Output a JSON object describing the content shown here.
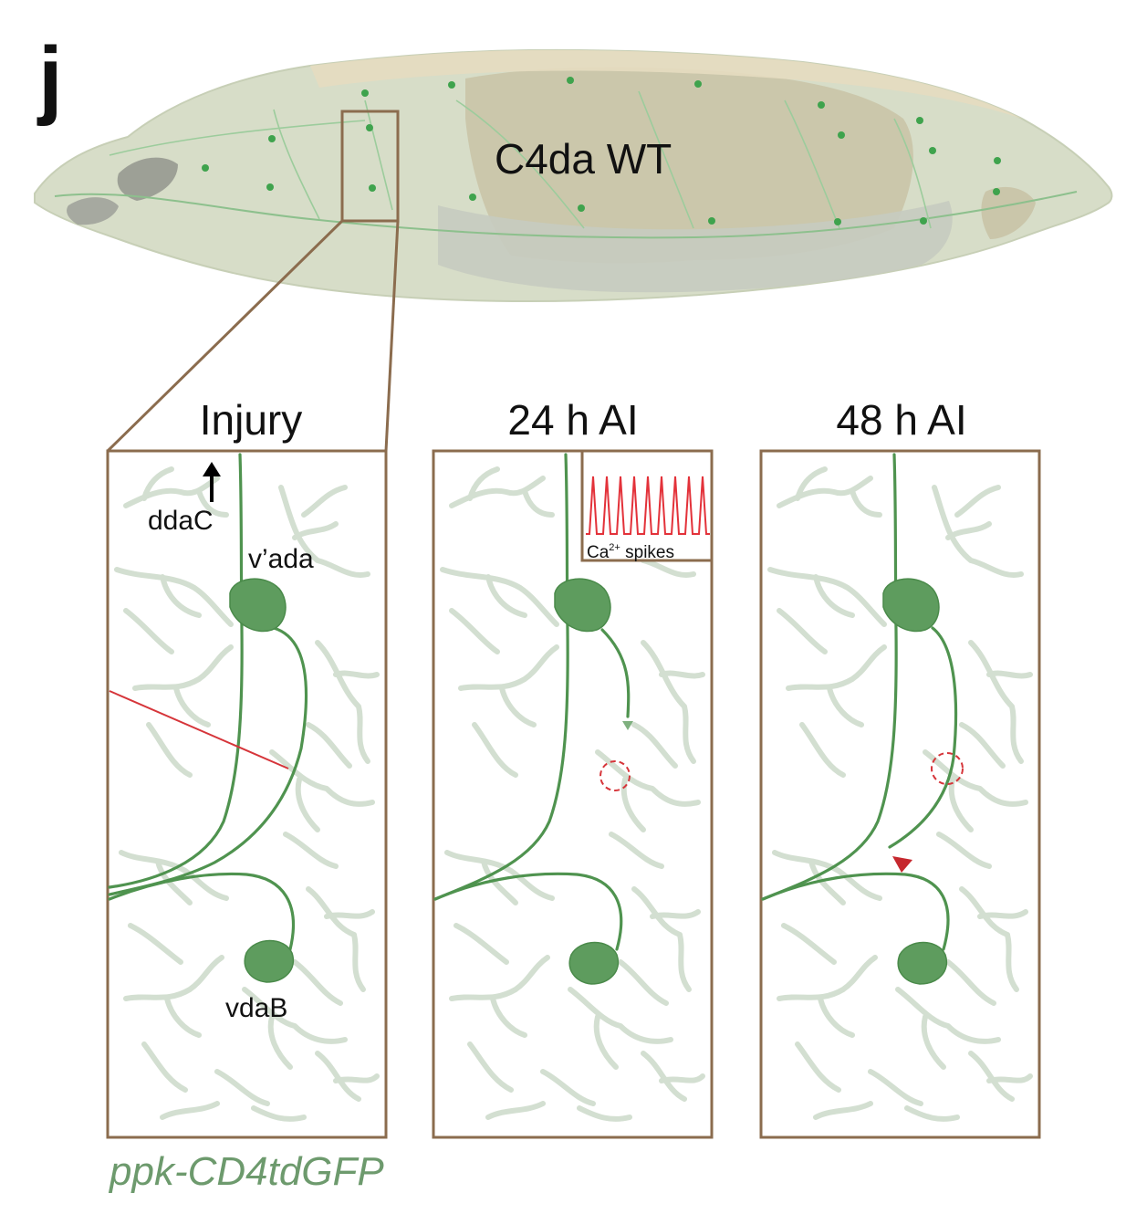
{
  "panel_letter": "j",
  "larva_label": "C4da WT",
  "panels": [
    {
      "title": "Injury"
    },
    {
      "title": "24 h AI"
    },
    {
      "title": "48 h AI"
    }
  ],
  "labels": {
    "ddaC": "ddaC",
    "vada": "v’ada",
    "vdaB": "vdaB",
    "spikes_prefix": "Ca",
    "spikes_sup": "2+",
    "spikes_suffix": " spikes"
  },
  "genotype": "ppk-CD4tdGFP",
  "colors": {
    "frame": "#8b6c4e",
    "neuron": "#4f934f",
    "dendrite_bg": "#d3dfd1",
    "injury": "#d6353a",
    "genotype_text": "#6d9a6d"
  },
  "icons": [
    "arrow-up-icon",
    "regrowth-arrowhead-icon"
  ]
}
